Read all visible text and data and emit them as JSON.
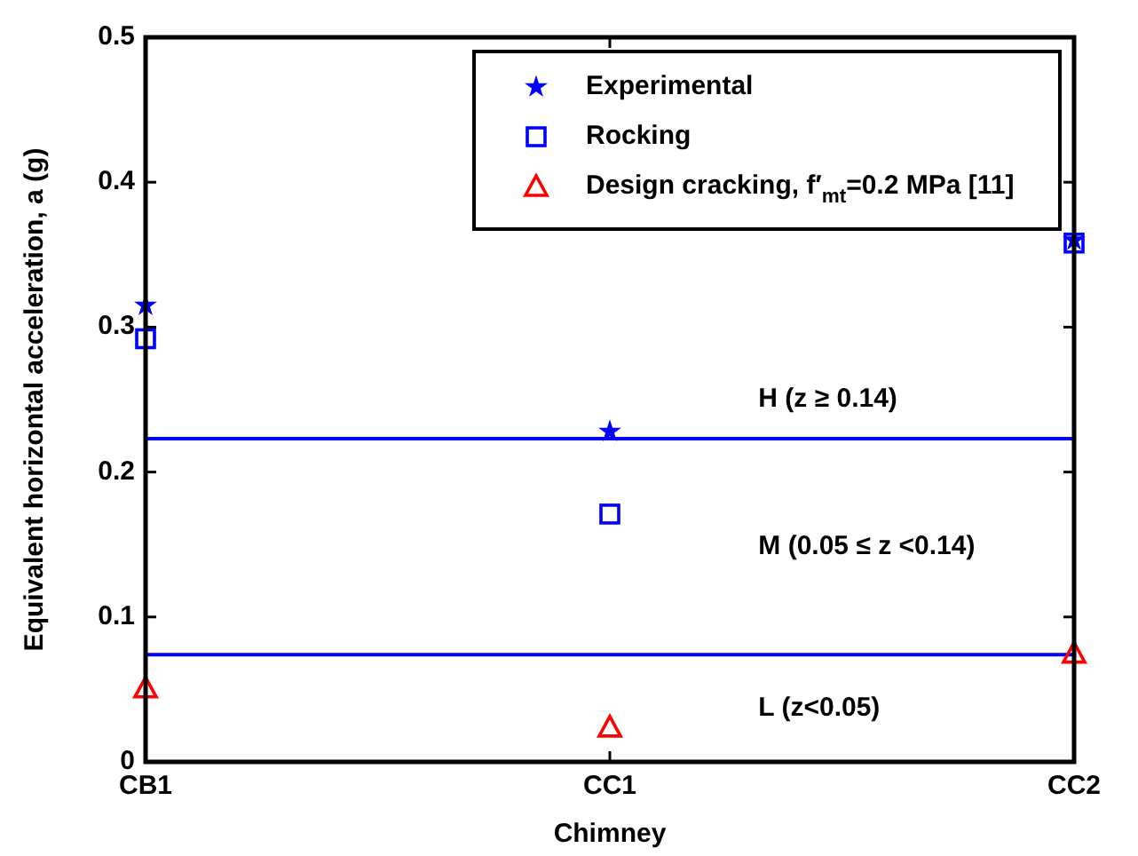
{
  "chart_data": {
    "type": "scatter",
    "xlabel": "Chimney",
    "ylabel": "Equivalent horizontal acceleration, a (g)",
    "categories": [
      "CB1",
      "CC1",
      "CC2"
    ],
    "series": [
      {
        "name": "Experimental",
        "color": "#0000ff",
        "marker": "star",
        "values": [
          0.315,
          0.228,
          0.36
        ]
      },
      {
        "name": "Rocking",
        "color": "#0000ff",
        "marker": "square",
        "values": [
          0.292,
          0.171,
          0.358
        ]
      },
      {
        "name": "Design cracking, f′$_{mt}$=0.2 MPa [11]",
        "color": "#ff0000",
        "marker": "triangle",
        "values": [
          0.051,
          0.024,
          0.075
        ]
      }
    ],
    "ylim": [
      0,
      0.5
    ],
    "yticks": [
      0,
      0.1,
      0.2,
      0.3,
      0.4,
      0.5
    ],
    "ref_lines": [
      {
        "axis": "y",
        "value": 0.223,
        "color": "#0000ff"
      },
      {
        "axis": "y",
        "value": 0.074,
        "color": "#0000ff"
      }
    ],
    "annotations": [
      "H (z ≥ 0.14)",
      "M (0.05 ≤ z <0.14)",
      "L (z<0.05)"
    ],
    "legend": "top right",
    "grid": false
  }
}
